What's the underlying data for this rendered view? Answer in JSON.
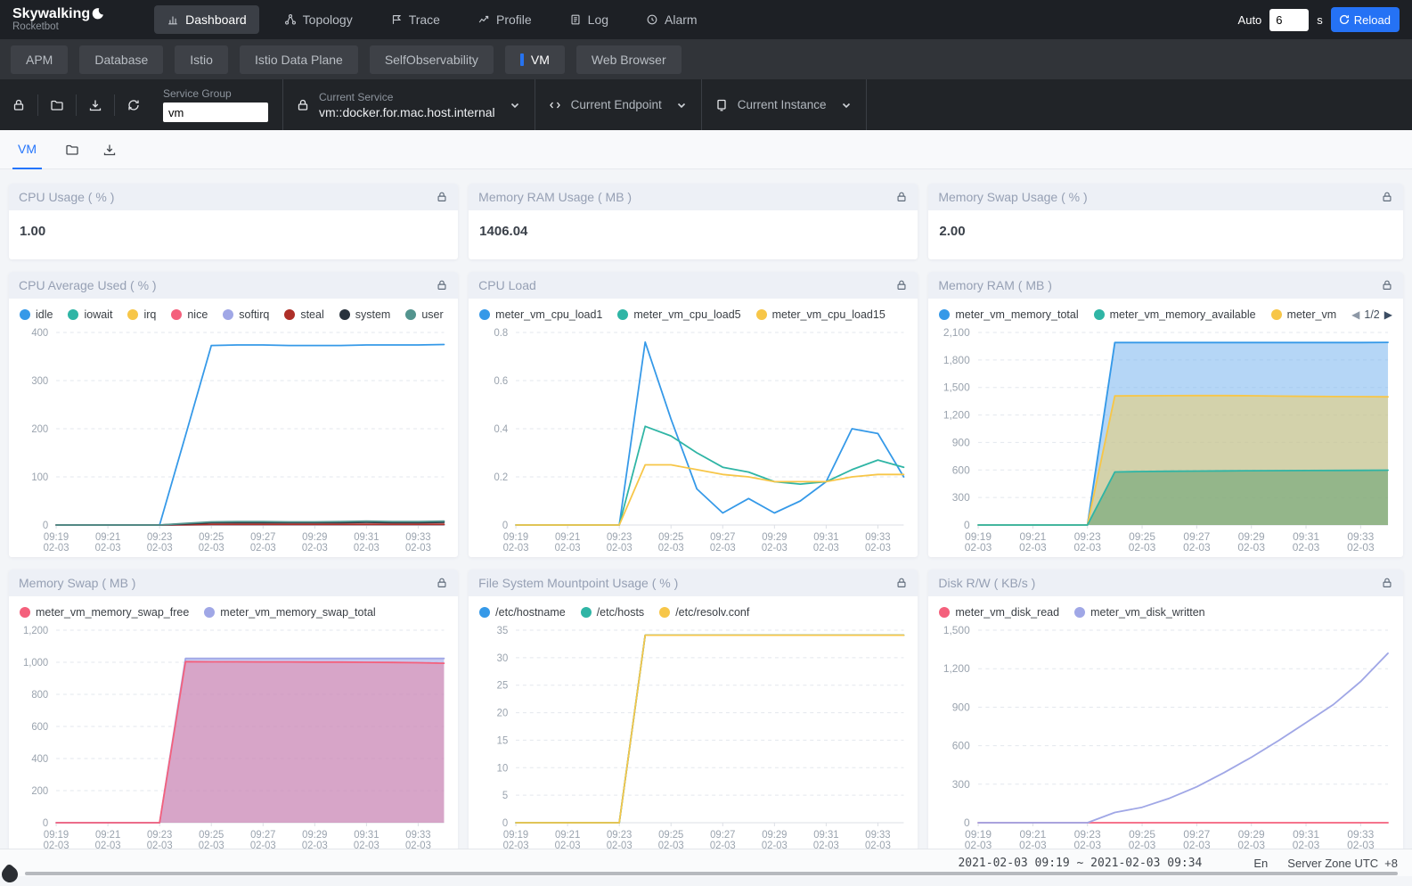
{
  "nav": {
    "brand": {
      "title": "Skywalking",
      "subtitle": "Rocketbot"
    },
    "items": [
      {
        "label": "Dashboard"
      },
      {
        "label": "Topology"
      },
      {
        "label": "Trace"
      },
      {
        "label": "Profile"
      },
      {
        "label": "Log"
      },
      {
        "label": "Alarm"
      }
    ],
    "auto_label": "Auto",
    "auto_value": "6",
    "auto_unit": "s",
    "reload_label": "Reload"
  },
  "group_tabs": {
    "items": [
      {
        "label": "APM"
      },
      {
        "label": "Database"
      },
      {
        "label": "Istio"
      },
      {
        "label": "Istio Data Plane"
      },
      {
        "label": "SelfObservability"
      },
      {
        "label": "VM"
      },
      {
        "label": "Web Browser"
      }
    ]
  },
  "toolbar": {
    "service_group": {
      "label": "Service Group",
      "value": "vm"
    },
    "current_service": {
      "label": "Current Service",
      "value": "vm::docker.for.mac.host.internal"
    },
    "current_endpoint": {
      "label": "Current Endpoint"
    },
    "current_instance": {
      "label": "Current Instance"
    }
  },
  "subtabs": {
    "active": "VM"
  },
  "summary_cards": [
    {
      "title": "CPU Usage ( % )",
      "value": "1.00"
    },
    {
      "title": "Memory RAM Usage ( MB )",
      "value": "1406.04"
    },
    {
      "title": "Memory Swap Usage ( % )",
      "value": "2.00"
    }
  ],
  "footer": {
    "time_range": "2021-02-03 09:19 ~ 2021-02-03 09:34",
    "lang": "En",
    "zone_label": "Server Zone UTC",
    "zone_value": "+8"
  },
  "charts": {
    "cpu_avg": {
      "title": "CPU Average Used ( % )",
      "legend": [
        {
          "label": "idle",
          "color": "#3599e8"
        },
        {
          "label": "iowait",
          "color": "#2fb5a5"
        },
        {
          "label": "irq",
          "color": "#f7c648"
        },
        {
          "label": "nice",
          "color": "#f4607c"
        },
        {
          "label": "softirq",
          "color": "#a0a7e6"
        },
        {
          "label": "steal",
          "color": "#ae2f28"
        },
        {
          "label": "system",
          "color": "#28323c"
        },
        {
          "label": "user",
          "color": "#53948e"
        }
      ],
      "chart_data": {
        "type": "line",
        "ylim": [
          0,
          400
        ],
        "yticks": [
          0,
          100,
          200,
          300,
          400
        ],
        "xticks": [
          "09:19",
          "09:21",
          "09:23",
          "09:25",
          "09:27",
          "09:29",
          "09:31",
          "09:33"
        ],
        "xtick_idx": [
          0,
          2,
          4,
          6,
          8,
          10,
          12,
          14
        ],
        "xsub": "02-03",
        "series": [
          {
            "name": "idle",
            "color": "#3599e8",
            "values": [
              0,
              0,
              0,
              0,
              0,
              186,
              373,
              374,
              374,
              373,
              373,
              373,
              374,
              374,
              374,
              375
            ]
          },
          {
            "name": "iowait",
            "color": "#2fb5a5",
            "values": [
              0,
              0,
              0,
              0,
              0,
              0.2,
              0.5,
              0.5,
              0.5,
              0.5,
              0.5,
              0.5,
              0.5,
              0.5,
              0.5,
              0.5
            ]
          },
          {
            "name": "irq",
            "color": "#f7c648",
            "values": [
              0,
              0,
              0,
              0,
              0,
              0,
              0,
              0,
              0,
              0,
              0,
              0,
              0,
              0,
              0,
              0
            ]
          },
          {
            "name": "nice",
            "color": "#f4607c",
            "values": [
              0,
              0,
              0,
              0,
              0,
              0.3,
              0.8,
              0.8,
              0.8,
              0.8,
              0.8,
              0.8,
              0.8,
              0.8,
              0.8,
              0.8
            ]
          },
          {
            "name": "softirq",
            "color": "#a0a7e6",
            "values": [
              0,
              0,
              0,
              0,
              0,
              0.1,
              0.2,
              0.2,
              0.2,
              0.2,
              0.2,
              0.2,
              0.2,
              0.2,
              0.2,
              0.2
            ]
          },
          {
            "name": "steal",
            "color": "#ae2f28",
            "values": [
              0,
              0,
              0,
              0,
              0,
              0.8,
              1.5,
              1.5,
              1.5,
              1.5,
              1.5,
              1.5,
              1.5,
              1.5,
              1.5,
              1.5
            ]
          },
          {
            "name": "system",
            "color": "#28323c",
            "values": [
              0,
              0,
              0,
              0,
              0,
              2.5,
              5,
              5,
              5,
              5,
              5,
              5,
              5.5,
              5,
              5,
              5.5
            ]
          },
          {
            "name": "user",
            "color": "#53948e",
            "values": [
              0,
              0,
              0,
              0,
              0,
              3.5,
              6.5,
              7,
              7,
              6.5,
              6.5,
              7,
              8,
              7,
              7,
              8
            ]
          }
        ]
      }
    },
    "cpu_load": {
      "title": "CPU Load",
      "legend": [
        {
          "label": "meter_vm_cpu_load1",
          "color": "#3599e8"
        },
        {
          "label": "meter_vm_cpu_load5",
          "color": "#2fb5a5"
        },
        {
          "label": "meter_vm_cpu_load15",
          "color": "#f7c648"
        }
      ],
      "chart_data": {
        "type": "line",
        "ylim": [
          0,
          0.8
        ],
        "yticks": [
          0,
          0.2,
          0.4,
          0.6,
          0.8
        ],
        "xticks": [
          "09:19",
          "09:21",
          "09:23",
          "09:25",
          "09:27",
          "09:29",
          "09:31",
          "09:33"
        ],
        "xtick_idx": [
          0,
          2,
          4,
          6,
          8,
          10,
          12,
          14
        ],
        "xsub": "02-03",
        "series": [
          {
            "name": "meter_vm_cpu_load1",
            "color": "#3599e8",
            "values": [
              0,
              0,
              0,
              0,
              0,
              0.76,
              0.44,
              0.15,
              0.05,
              0.11,
              0.05,
              0.1,
              0.18,
              0.4,
              0.38,
              0.2
            ]
          },
          {
            "name": "meter_vm_cpu_load5",
            "color": "#2fb5a5",
            "values": [
              0,
              0,
              0,
              0,
              0,
              0.41,
              0.37,
              0.3,
              0.24,
              0.22,
              0.18,
              0.17,
              0.18,
              0.23,
              0.27,
              0.24
            ]
          },
          {
            "name": "meter_vm_cpu_load15",
            "color": "#f7c648",
            "values": [
              0,
              0,
              0,
              0,
              0,
              0.25,
              0.25,
              0.23,
              0.21,
              0.2,
              0.18,
              0.18,
              0.18,
              0.2,
              0.21,
              0.21
            ]
          }
        ]
      }
    },
    "mem_ram": {
      "title": "Memory RAM ( MB )",
      "legend": [
        {
          "label": "meter_vm_memory_total",
          "color": "#3599e8"
        },
        {
          "label": "meter_vm_memory_available",
          "color": "#2fb5a5"
        },
        {
          "label": "meter_vm",
          "color": "#f7c648"
        }
      ],
      "pagination": "1/2",
      "chart_data": {
        "type": "area",
        "ylim": [
          0,
          2100
        ],
        "yticks": [
          0,
          300,
          600,
          900,
          1200,
          1500,
          1800,
          2100
        ],
        "xticks": [
          "09:19",
          "09:21",
          "09:23",
          "09:25",
          "09:27",
          "09:29",
          "09:31",
          "09:33"
        ],
        "xtick_idx": [
          0,
          2,
          4,
          6,
          8,
          10,
          12,
          14
        ],
        "xsub": "02-03",
        "series": [
          {
            "name": "meter_vm_memory_total",
            "color": "#3599e8",
            "fill": "rgba(120,181,238,0.55)",
            "values": [
              0,
              0,
              0,
              0,
              0,
              1990,
              1990,
              1990,
              1990,
              1990,
              1990,
              1990,
              1990,
              1990,
              1990,
              1992
            ]
          },
          {
            "name": "meter_vm",
            "color": "#f7c648",
            "fill": "rgba(242,205,96,0.5)",
            "values": [
              0,
              0,
              0,
              0,
              0,
              1408,
              1410,
              1411,
              1412,
              1412,
              1410,
              1406,
              1403,
              1401,
              1400,
              1398
            ]
          },
          {
            "name": "meter_vm_memory_available",
            "color": "#2fb5a5",
            "fill": "rgba(96,158,112,0.55)",
            "values": [
              0,
              0,
              0,
              0,
              0,
              578,
              583,
              586,
              588,
              590,
              592,
              593,
              594,
              595,
              596,
              598
            ]
          }
        ]
      }
    },
    "mem_swap": {
      "title": "Memory Swap ( MB )",
      "legend": [
        {
          "label": "meter_vm_memory_swap_free",
          "color": "#f4607c"
        },
        {
          "label": "meter_vm_memory_swap_total",
          "color": "#a0a7e6"
        }
      ],
      "chart_data": {
        "type": "area",
        "ylim": [
          0,
          1200
        ],
        "yticks": [
          0,
          200,
          400,
          600,
          800,
          1000,
          1200
        ],
        "xticks": [
          "09:19",
          "09:21",
          "09:23",
          "09:25",
          "09:27",
          "09:29",
          "09:31",
          "09:33"
        ],
        "xtick_idx": [
          0,
          2,
          4,
          6,
          8,
          10,
          12,
          14
        ],
        "xsub": "02-03",
        "series": [
          {
            "name": "meter_vm_memory_swap_total",
            "color": "#a0a7e6",
            "fill": "rgba(160,167,230,0.6)",
            "values": [
              0,
              0,
              0,
              0,
              0,
              1024,
              1024,
              1024,
              1024,
              1024,
              1024,
              1024,
              1024,
              1024,
              1024,
              1024
            ]
          },
          {
            "name": "meter_vm_memory_swap_free",
            "color": "#f4607c",
            "fill": "rgba(236,120,150,0.45)",
            "values": [
              0,
              0,
              0,
              0,
              0,
              1004,
              1003,
              1003,
              1002,
              1002,
              1001,
              1001,
              1000,
              999,
              997,
              994
            ]
          }
        ]
      }
    },
    "fs_usage": {
      "title": "File System Mountpoint Usage ( % )",
      "legend": [
        {
          "label": "/etc/hostname",
          "color": "#3599e8"
        },
        {
          "label": "/etc/hosts",
          "color": "#2fb5a5"
        },
        {
          "label": "/etc/resolv.conf",
          "color": "#f7c648"
        }
      ],
      "chart_data": {
        "type": "line",
        "ylim": [
          0,
          35
        ],
        "yticks": [
          0,
          5,
          10,
          15,
          20,
          25,
          30,
          35
        ],
        "xticks": [
          "09:19",
          "09:21",
          "09:23",
          "09:25",
          "09:27",
          "09:29",
          "09:31",
          "09:33"
        ],
        "xtick_idx": [
          0,
          2,
          4,
          6,
          8,
          10,
          12,
          14
        ],
        "xsub": "02-03",
        "series": [
          {
            "name": "/etc/hostname",
            "color": "#3599e8",
            "values": [
              0,
              0,
              0,
              0,
              0,
              34.1,
              34.1,
              34.1,
              34.1,
              34.1,
              34.1,
              34.1,
              34.1,
              34.1,
              34.1,
              34.1
            ]
          },
          {
            "name": "/etc/hosts",
            "color": "#2fb5a5",
            "values": [
              0,
              0,
              0,
              0,
              0,
              34.1,
              34.1,
              34.1,
              34.1,
              34.1,
              34.1,
              34.1,
              34.1,
              34.1,
              34.1,
              34.1
            ]
          },
          {
            "name": "/etc/resolv.conf",
            "color": "#f7c648",
            "values": [
              0,
              0,
              0,
              0,
              0,
              34.1,
              34.1,
              34.1,
              34.1,
              34.1,
              34.1,
              34.1,
              34.1,
              34.1,
              34.1,
              34.1
            ]
          }
        ]
      }
    },
    "disk_rw": {
      "title": "Disk R/W ( KB/s )",
      "legend": [
        {
          "label": "meter_vm_disk_read",
          "color": "#f4607c"
        },
        {
          "label": "meter_vm_disk_written",
          "color": "#a0a7e6"
        }
      ],
      "chart_data": {
        "type": "line",
        "ylim": [
          0,
          1500
        ],
        "yticks": [
          0,
          300,
          600,
          900,
          1200,
          1500
        ],
        "xticks": [
          "09:19",
          "09:21",
          "09:23",
          "09:25",
          "09:27",
          "09:29",
          "09:31",
          "09:33"
        ],
        "xtick_idx": [
          0,
          2,
          4,
          6,
          8,
          10,
          12,
          14
        ],
        "xsub": "02-03",
        "series": [
          {
            "name": "meter_vm_disk_read",
            "color": "#f4607c",
            "values": [
              0,
              0,
              0,
              0,
              0,
              0,
              0,
              0,
              0,
              0,
              0,
              0,
              0,
              0,
              0,
              0
            ]
          },
          {
            "name": "meter_vm_disk_written",
            "color": "#a0a7e6",
            "values": [
              0,
              0,
              0,
              0,
              0,
              80,
              120,
              190,
              280,
              390,
              510,
              640,
              780,
              920,
              1100,
              1320
            ]
          }
        ]
      }
    }
  }
}
